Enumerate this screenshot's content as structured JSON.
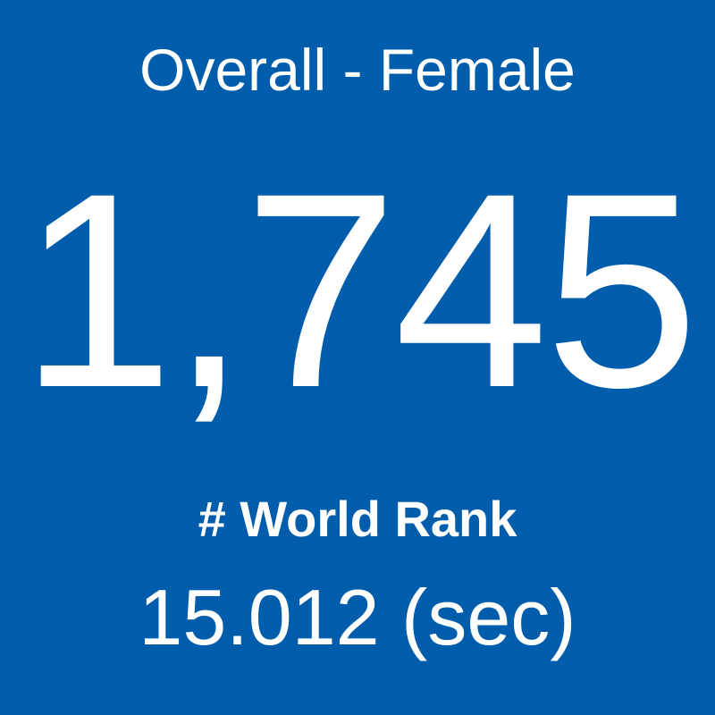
{
  "tile": {
    "title": "Overall - Female",
    "value": "1,745",
    "label": "# World Rank",
    "time": "15.012 (sec)"
  }
}
